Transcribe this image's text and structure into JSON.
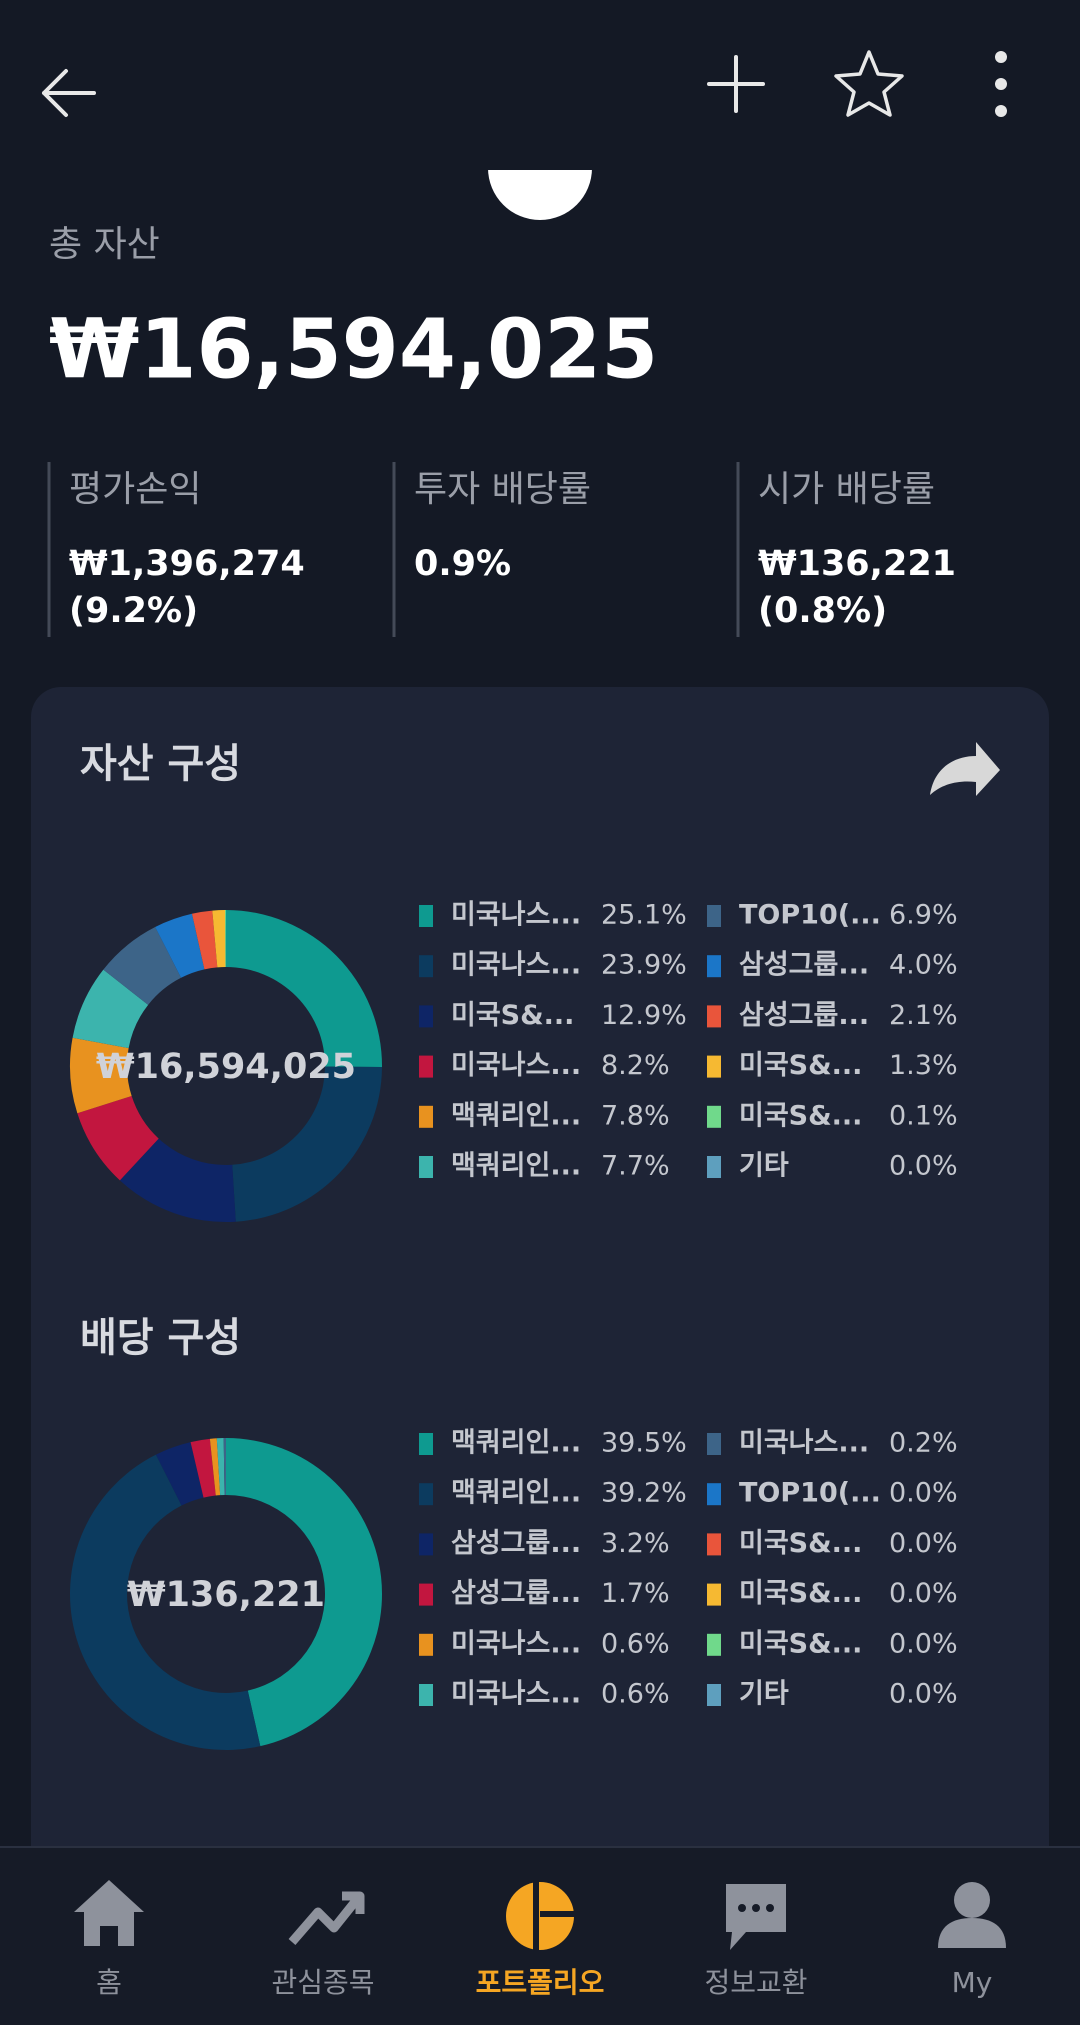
{
  "header": {
    "back": "back",
    "add": "add",
    "favorite": "favorite",
    "menu": "menu"
  },
  "summary": {
    "label": "총 자산",
    "value": "₩16,594,025"
  },
  "stats": [
    {
      "label": "평가손익",
      "value": "₩1,396,274",
      "sub": "(9.2%)"
    },
    {
      "label": "투자 배당률",
      "value": "0.9%"
    },
    {
      "label": "시가 배당률",
      "value": "₩136,221",
      "sub": "(0.8%)"
    }
  ],
  "charts": [
    {
      "type": "donut",
      "title": "자산 구성",
      "center_label": "₩16,594,025",
      "categories": [
        "미국나스...",
        "미국나스...",
        "미국S&...",
        "미국나스...",
        "맥쿼리인...",
        "맥쿼리인...",
        "TOP10(...",
        "삼성그룹...",
        "삼성그룹...",
        "미국S&...",
        "미국S&...",
        "기타"
      ],
      "values": [
        25.1,
        23.9,
        12.9,
        8.2,
        7.8,
        7.7,
        6.9,
        4.0,
        2.1,
        1.3,
        0.1,
        0.0
      ],
      "value_labels": [
        "25.1%",
        "23.9%",
        "12.9%",
        "8.2%",
        "7.8%",
        "7.7%",
        "6.9%",
        "4.0%",
        "2.1%",
        "1.3%",
        "0.1%",
        "0.0%"
      ],
      "colors": [
        "#0e9a90",
        "#0c3b5f",
        "#0e2566",
        "#c2163f",
        "#e8921f",
        "#3cb4ad",
        "#3d6488",
        "#1b76c8",
        "#e9553b",
        "#f6b932",
        "#70d98b",
        "#5e9fbe"
      ]
    },
    {
      "type": "donut",
      "title": "배당 구성",
      "center_label": "₩136,221",
      "categories": [
        "맥쿼리인...",
        "맥쿼리인...",
        "삼성그룹...",
        "삼성그룹...",
        "미국나스...",
        "미국나스...",
        "미국나스...",
        "TOP10(...",
        "미국S&...",
        "미국S&...",
        "미국S&...",
        "기타"
      ],
      "values": [
        39.5,
        39.2,
        3.2,
        1.7,
        0.6,
        0.6,
        0.2,
        0.0,
        0.0,
        0.0,
        0.0,
        0.0
      ],
      "value_labels": [
        "39.5%",
        "39.2%",
        "3.2%",
        "1.7%",
        "0.6%",
        "0.6%",
        "0.2%",
        "0.0%",
        "0.0%",
        "0.0%",
        "0.0%",
        "0.0%"
      ],
      "colors": [
        "#0e9a90",
        "#0c3b5f",
        "#0e2566",
        "#c2163f",
        "#e8921f",
        "#3cb4ad",
        "#3d6488",
        "#1b76c8",
        "#e9553b",
        "#f6b932",
        "#70d98b",
        "#5e9fbe"
      ]
    }
  ],
  "nav": [
    {
      "label": "홈"
    },
    {
      "label": "관심종목"
    },
    {
      "label": "포트폴리오",
      "active": true
    },
    {
      "label": "정보교환"
    },
    {
      "label": "My"
    }
  ]
}
